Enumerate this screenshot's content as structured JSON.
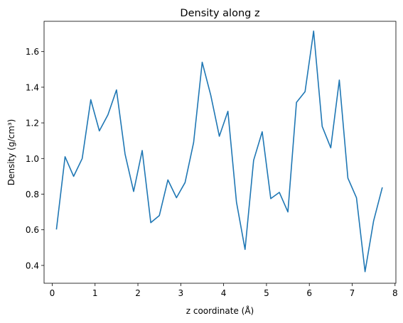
{
  "chart_data": {
    "type": "line",
    "title": "Density along z",
    "xlabel": "z coordinate (Å)",
    "ylabel": "Density (g/cm³)",
    "xlim": [
      -0.19,
      8.02
    ],
    "ylim": [
      0.3,
      1.77
    ],
    "xticks": [
      0,
      1,
      2,
      3,
      4,
      5,
      6,
      7,
      8
    ],
    "yticks": [
      0.4,
      0.6,
      0.8,
      1.0,
      1.2,
      1.4,
      1.6
    ],
    "grid": false,
    "series": [
      {
        "color": "#1f77b4",
        "x": [
          0.1,
          0.3,
          0.5,
          0.7,
          0.9,
          1.1,
          1.3,
          1.5,
          1.7,
          1.9,
          2.1,
          2.3,
          2.5,
          2.7,
          2.9,
          3.1,
          3.3,
          3.5,
          3.7,
          3.9,
          4.1,
          4.3,
          4.5,
          4.7,
          4.9,
          5.1,
          5.3,
          5.5,
          5.7,
          5.9,
          6.1,
          6.3,
          6.5,
          6.7,
          6.9,
          7.1,
          7.3,
          7.5,
          7.7
        ],
        "y": [
          0.605,
          1.01,
          0.9,
          1.0,
          1.33,
          1.155,
          1.245,
          1.385,
          1.025,
          0.815,
          1.045,
          0.64,
          0.68,
          0.88,
          0.78,
          0.865,
          1.09,
          1.54,
          1.355,
          1.125,
          1.265,
          0.755,
          0.49,
          0.99,
          1.15,
          0.775,
          0.81,
          0.7,
          1.315,
          1.375,
          1.715,
          1.18,
          1.06,
          1.44,
          0.89,
          0.78,
          0.365,
          0.65,
          0.835
        ]
      }
    ]
  }
}
